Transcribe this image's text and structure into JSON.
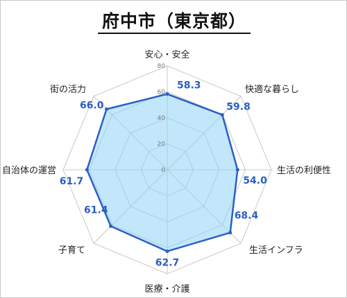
{
  "title": "府中市（東京都）",
  "chart_data": {
    "type": "radar",
    "categories": [
      "安心・安全",
      "快適な暮らし",
      "生活の利便性",
      "生活インフラ",
      "医療・介護",
      "子育て",
      "自治体の運営",
      "街の活力"
    ],
    "values": [
      58.3,
      59.8,
      54.0,
      68.4,
      62.7,
      61.4,
      61.7,
      66.0
    ],
    "value_labels": [
      "58.3",
      "59.8",
      "54.0",
      "68.4",
      "62.7",
      "61.4",
      "61.7",
      "66.0"
    ],
    "rmin": 0,
    "rmax": 80,
    "ticks": [
      "0",
      "20",
      "40",
      "60",
      "80"
    ],
    "colors": {
      "line": "#2a5fc4",
      "fill": "#8fd3f7",
      "grid": "#c8c8c8",
      "value_text": "#2a5fc4"
    }
  }
}
